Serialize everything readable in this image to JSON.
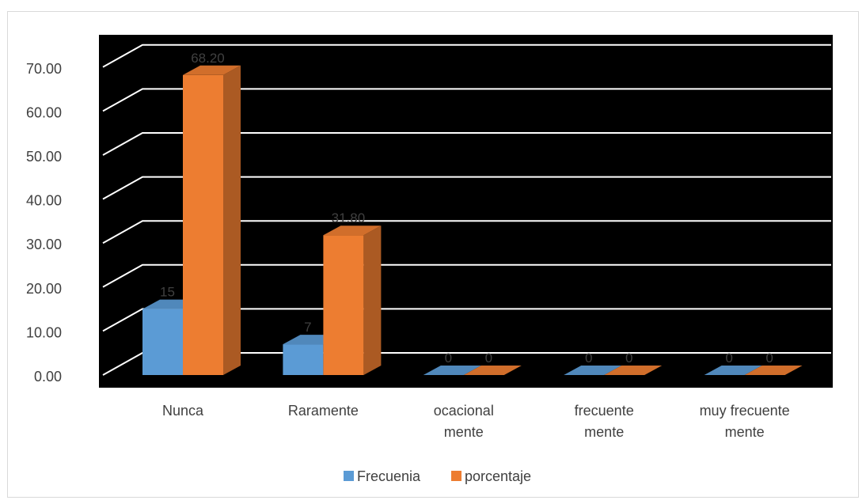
{
  "chart_data": {
    "type": "bar",
    "categories": [
      [
        "Nunca"
      ],
      [
        "Raramente"
      ],
      [
        "ocacional",
        "mente"
      ],
      [
        "frecuente",
        "mente"
      ],
      [
        "muy frecuente",
        "mente"
      ]
    ],
    "series": [
      {
        "name": "Frecuenia",
        "values": [
          15,
          7,
          0,
          0,
          0
        ],
        "labels": [
          "15",
          "7",
          "0",
          "0",
          "0"
        ],
        "color": "#5b9bd5"
      },
      {
        "name": "porcentaje",
        "values": [
          68.2,
          31.8,
          0,
          0,
          0
        ],
        "labels": [
          "68.20",
          "31.80",
          "0",
          "0",
          "0"
        ],
        "color": "#ed7d31"
      }
    ],
    "ylim": [
      0,
      70
    ],
    "yticks": [
      "0.00",
      "10.00",
      "20.00",
      "30.00",
      "40.00",
      "50.00",
      "60.00",
      "70.00"
    ],
    "grid": true,
    "legend_position": "bottom",
    "plot_background": "#000000",
    "gridline_color": "#ffffff",
    "data_label_color": "#404040",
    "axis_text_color": "#404040"
  }
}
